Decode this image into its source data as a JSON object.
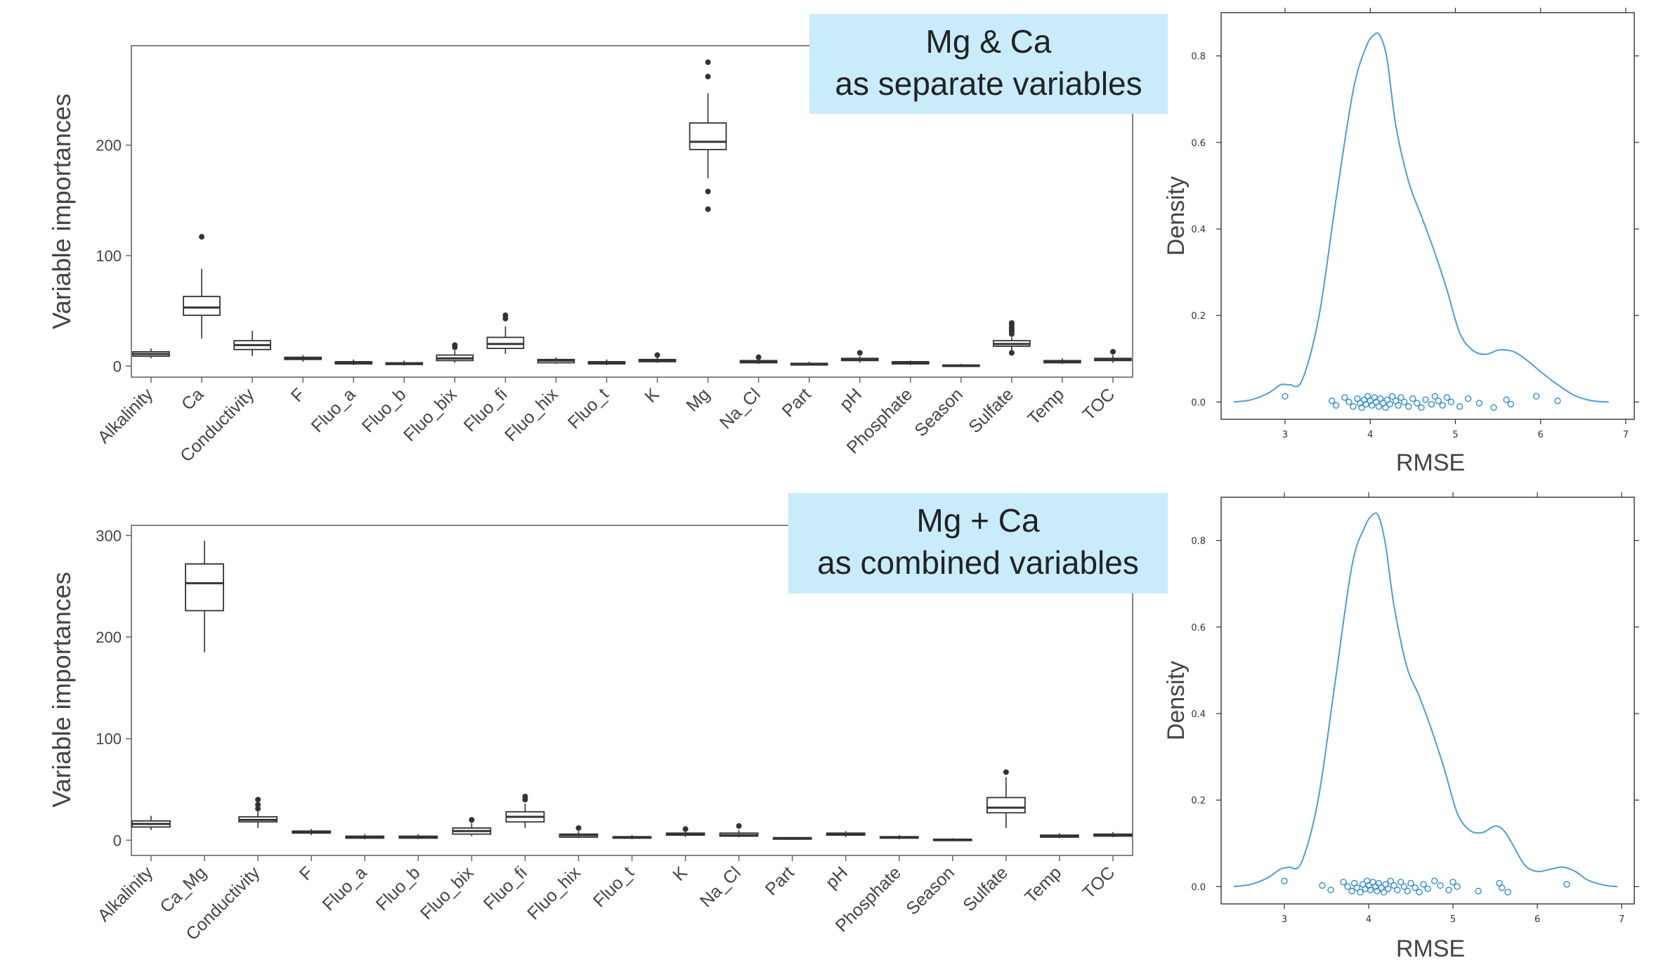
{
  "colors": {
    "box": "#333333",
    "label_bg": "#c8ecfa",
    "density": "#4a9fd8",
    "points": "#2f8fce"
  },
  "chart_data": [
    {
      "type": "box",
      "label": [
        "Mg & Ca",
        "as separate variables"
      ],
      "ylabel": "Variable importances",
      "ylim": [
        -10,
        290
      ],
      "yticks": [
        0,
        100,
        200
      ],
      "categories": [
        "Alkalinity",
        "Ca",
        "Conductivity",
        "F",
        "Fluo_a",
        "Fluo_b",
        "Fluo_bix",
        "Fluo_fi",
        "Fluo_hix",
        "Fluo_t",
        "K",
        "Mg",
        "Na_Cl",
        "Part",
        "pH",
        "Phosphate",
        "Season",
        "Sulfate",
        "Temp",
        "TOC"
      ],
      "boxes": [
        {
          "q1": 9,
          "med": 11,
          "q3": 13,
          "wlo": 7,
          "whi": 16,
          "out": []
        },
        {
          "q1": 46,
          "med": 53,
          "q3": 63,
          "wlo": 25,
          "whi": 88,
          "out": [
            117
          ]
        },
        {
          "q1": 15,
          "med": 19,
          "q3": 23,
          "wlo": 9,
          "whi": 32,
          "out": []
        },
        {
          "q1": 6,
          "med": 7,
          "q3": 8,
          "wlo": 4,
          "whi": 10,
          "out": []
        },
        {
          "q1": 2,
          "med": 3,
          "q3": 4,
          "wlo": 1,
          "whi": 6,
          "out": []
        },
        {
          "q1": 1.5,
          "med": 2,
          "q3": 3,
          "wlo": 0.5,
          "whi": 5,
          "out": []
        },
        {
          "q1": 5,
          "med": 7,
          "q3": 10,
          "wlo": 3,
          "whi": 14,
          "out": [
            17,
            19
          ]
        },
        {
          "q1": 16,
          "med": 20,
          "q3": 26,
          "wlo": 11,
          "whi": 36,
          "out": [
            43,
            46
          ]
        },
        {
          "q1": 3,
          "med": 5,
          "q3": 6,
          "wlo": 2,
          "whi": 8,
          "out": []
        },
        {
          "q1": 2,
          "med": 3,
          "q3": 4,
          "wlo": 1,
          "whi": 6,
          "out": []
        },
        {
          "q1": 4,
          "med": 5,
          "q3": 6,
          "wlo": 3,
          "whi": 8,
          "out": [
            10
          ]
        },
        {
          "q1": 196,
          "med": 203,
          "q3": 220,
          "wlo": 170,
          "whi": 247,
          "out": [
            158,
            142,
            262,
            275
          ]
        },
        {
          "q1": 3,
          "med": 4,
          "q3": 5,
          "wlo": 2,
          "whi": 7,
          "out": [
            8
          ]
        },
        {
          "q1": 1,
          "med": 2,
          "q3": 2.5,
          "wlo": 0.5,
          "whi": 4,
          "out": []
        },
        {
          "q1": 5,
          "med": 6,
          "q3": 7,
          "wlo": 3,
          "whi": 9,
          "out": [
            12
          ]
        },
        {
          "q1": 2,
          "med": 3,
          "q3": 4,
          "wlo": 1,
          "whi": 5,
          "out": []
        },
        {
          "q1": 0,
          "med": 0.5,
          "q3": 1,
          "wlo": 0,
          "whi": 2,
          "out": []
        },
        {
          "q1": 18,
          "med": 20,
          "q3": 23,
          "wlo": 14,
          "whi": 26,
          "out": [
            12,
            29,
            31,
            33,
            35,
            37,
            39
          ]
        },
        {
          "q1": 3,
          "med": 4,
          "q3": 5,
          "wlo": 2,
          "whi": 7,
          "out": []
        },
        {
          "q1": 5,
          "med": 6,
          "q3": 7,
          "wlo": 3,
          "whi": 10,
          "out": [
            13
          ]
        }
      ]
    },
    {
      "type": "box",
      "label": [
        "Mg + Ca",
        "as combined variables"
      ],
      "ylabel": "Variable importances",
      "ylim": [
        -15,
        310
      ],
      "yticks": [
        0,
        100,
        200,
        300
      ],
      "categories": [
        "Alkalinity",
        "Ca_Mg",
        "Conductivity",
        "F",
        "Fluo_a",
        "Fluo_b",
        "Fluo_bix",
        "Fluo_fi",
        "Fluo_hix",
        "Fluo_t",
        "K",
        "Na_Cl",
        "Part",
        "pH",
        "Phosphate",
        "Season",
        "Sulfate",
        "Temp",
        "TOC"
      ],
      "boxes": [
        {
          "q1": 13,
          "med": 16,
          "q3": 19,
          "wlo": 10,
          "whi": 24,
          "out": []
        },
        {
          "q1": 226,
          "med": 253,
          "q3": 272,
          "wlo": 185,
          "whi": 295,
          "out": []
        },
        {
          "q1": 18,
          "med": 20,
          "q3": 23,
          "wlo": 12,
          "whi": 28,
          "out": [
            31,
            35,
            40
          ]
        },
        {
          "q1": 7,
          "med": 8,
          "q3": 9,
          "wlo": 5,
          "whi": 11,
          "out": []
        },
        {
          "q1": 2,
          "med": 3,
          "q3": 4,
          "wlo": 1,
          "whi": 6,
          "out": []
        },
        {
          "q1": 2,
          "med": 3,
          "q3": 4,
          "wlo": 1,
          "whi": 6,
          "out": []
        },
        {
          "q1": 6,
          "med": 9,
          "q3": 12,
          "wlo": 4,
          "whi": 17,
          "out": [
            20
          ]
        },
        {
          "q1": 18,
          "med": 23,
          "q3": 28,
          "wlo": 12,
          "whi": 36,
          "out": [
            40,
            43
          ]
        },
        {
          "q1": 3,
          "med": 5,
          "q3": 6,
          "wlo": 2,
          "whi": 9,
          "out": [
            12
          ]
        },
        {
          "q1": 2,
          "med": 3,
          "q3": 3.5,
          "wlo": 1,
          "whi": 5,
          "out": []
        },
        {
          "q1": 5,
          "med": 6,
          "q3": 7,
          "wlo": 3,
          "whi": 9,
          "out": [
            11
          ]
        },
        {
          "q1": 4,
          "med": 5,
          "q3": 7,
          "wlo": 3,
          "whi": 10,
          "out": [
            14
          ]
        },
        {
          "q1": 1,
          "med": 2,
          "q3": 2.5,
          "wlo": 0.5,
          "whi": 3,
          "out": []
        },
        {
          "q1": 5,
          "med": 6,
          "q3": 7,
          "wlo": 3,
          "whi": 9,
          "out": []
        },
        {
          "q1": 2,
          "med": 3,
          "q3": 3.5,
          "wlo": 1,
          "whi": 5,
          "out": []
        },
        {
          "q1": 0,
          "med": 0.5,
          "q3": 1,
          "wlo": 0,
          "whi": 2,
          "out": []
        },
        {
          "q1": 27,
          "med": 32,
          "q3": 42,
          "wlo": 12,
          "whi": 62,
          "out": [
            67
          ]
        },
        {
          "q1": 3,
          "med": 4,
          "q3": 5,
          "wlo": 2,
          "whi": 7,
          "out": []
        },
        {
          "q1": 4,
          "med": 5,
          "q3": 6,
          "wlo": 3,
          "whi": 8,
          "out": []
        }
      ]
    },
    {
      "type": "line",
      "xlabel": "RMSE",
      "ylabel": "Density",
      "xlim": [
        2.25,
        7.1
      ],
      "ylim": [
        -0.04,
        0.9
      ],
      "xticks": [
        3,
        4,
        5,
        6,
        7
      ],
      "yticks": [
        0.0,
        0.2,
        0.4,
        0.6,
        0.8
      ],
      "ytick_labels": [
        "0.0",
        "0.2",
        "0.4",
        "0.6",
        "0.8"
      ],
      "x": [
        2.4,
        2.6,
        2.8,
        2.95,
        3.05,
        3.2,
        3.4,
        3.6,
        3.8,
        3.95,
        4.05,
        4.12,
        4.2,
        4.3,
        4.45,
        4.6,
        4.75,
        4.9,
        5.05,
        5.2,
        5.35,
        5.5,
        5.6,
        5.7,
        5.85,
        6.0,
        6.2,
        6.4,
        6.6,
        6.8
      ],
      "y": [
        0.0,
        0.005,
        0.02,
        0.04,
        0.04,
        0.05,
        0.2,
        0.47,
        0.72,
        0.82,
        0.85,
        0.845,
        0.79,
        0.64,
        0.51,
        0.43,
        0.35,
        0.26,
        0.16,
        0.12,
        0.11,
        0.12,
        0.12,
        0.115,
        0.095,
        0.07,
        0.04,
        0.015,
        0.003,
        0.0
      ],
      "rug": [
        3.0,
        3.55,
        3.6,
        3.7,
        3.75,
        3.8,
        3.85,
        3.88,
        3.9,
        3.93,
        3.95,
        3.97,
        4.0,
        4.02,
        4.05,
        4.07,
        4.1,
        4.12,
        4.15,
        4.18,
        4.2,
        4.23,
        4.26,
        4.3,
        4.33,
        4.36,
        4.4,
        4.45,
        4.5,
        4.55,
        4.6,
        4.65,
        4.72,
        4.76,
        4.8,
        4.85,
        4.9,
        4.95,
        5.05,
        5.15,
        5.28,
        5.45,
        5.6,
        5.65,
        5.95,
        6.2
      ]
    },
    {
      "type": "line",
      "xlabel": "RMSE",
      "ylabel": "Density",
      "xlim": [
        2.25,
        7.15
      ],
      "ylim": [
        -0.04,
        0.9
      ],
      "xticks": [
        3,
        4,
        5,
        6,
        7
      ],
      "yticks": [
        0.0,
        0.2,
        0.4,
        0.6,
        0.8
      ],
      "ytick_labels": [
        "0.0",
        "0.2",
        "0.4",
        "0.6",
        "0.8"
      ],
      "x": [
        2.4,
        2.6,
        2.8,
        2.95,
        3.05,
        3.2,
        3.4,
        3.6,
        3.8,
        3.95,
        4.05,
        4.12,
        4.2,
        4.3,
        4.45,
        4.6,
        4.75,
        4.9,
        5.05,
        5.2,
        5.35,
        5.5,
        5.6,
        5.7,
        5.85,
        6.0,
        6.15,
        6.3,
        6.45,
        6.6,
        6.8,
        6.95
      ],
      "y": [
        0.0,
        0.005,
        0.02,
        0.04,
        0.045,
        0.055,
        0.2,
        0.47,
        0.74,
        0.83,
        0.86,
        0.855,
        0.79,
        0.65,
        0.51,
        0.44,
        0.36,
        0.27,
        0.17,
        0.13,
        0.125,
        0.14,
        0.13,
        0.1,
        0.05,
        0.035,
        0.04,
        0.045,
        0.035,
        0.015,
        0.003,
        0.0
      ],
      "rug": [
        3.0,
        3.45,
        3.55,
        3.7,
        3.75,
        3.8,
        3.83,
        3.86,
        3.9,
        3.93,
        3.96,
        3.98,
        4.0,
        4.02,
        4.05,
        4.08,
        4.1,
        4.12,
        4.15,
        4.18,
        4.2,
        4.23,
        4.26,
        4.3,
        4.34,
        4.38,
        4.42,
        4.46,
        4.5,
        4.55,
        4.6,
        4.65,
        4.7,
        4.78,
        4.85,
        4.95,
        5.0,
        5.05,
        5.3,
        5.55,
        5.58,
        5.65,
        6.35
      ]
    }
  ]
}
